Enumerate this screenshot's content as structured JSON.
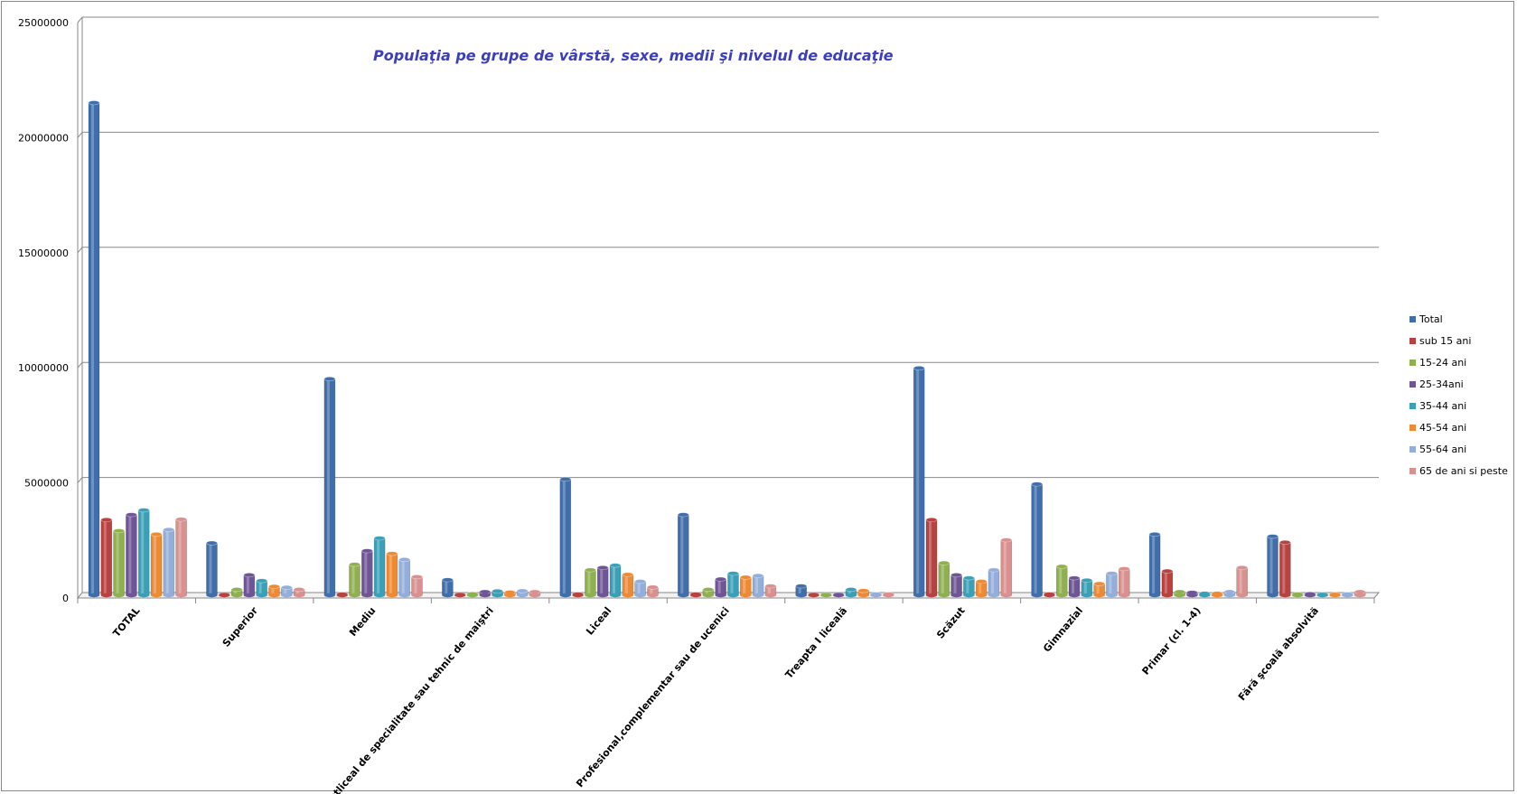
{
  "chart_data": {
    "type": "bar",
    "title": "Populaţia pe grupe de vârstă, sexe, medii şi nivelul de educaţie",
    "xlabel": "",
    "ylabel": "",
    "ylim": [
      0,
      25000000
    ],
    "yticks": [
      "0",
      "5000000",
      "10000000",
      "15000000",
      "20000000",
      "25000000"
    ],
    "grid": true,
    "legend_position": "right",
    "categories": [
      "TOTAL",
      "Superior",
      "Mediu",
      "Postliceal de specialitate sau tehnic de maiştri",
      "Liceal",
      "Profesional,complementar sau de ucenici",
      "Treapta I liceală",
      "Scăzut",
      "Gimnazial",
      "Primar (cl. 1-4)",
      "Fără şcoală absolvită"
    ],
    "series": [
      {
        "name": "Total",
        "color": "#3f6eaa",
        "values": [
          21400000,
          2270000,
          9400000,
          670000,
          5040000,
          3500000,
          400000,
          9870000,
          4830000,
          2650000,
          2560000
        ]
      },
      {
        "name": "sub 15 ani",
        "color": "#b8423f",
        "values": [
          3280000,
          30000,
          50000,
          30000,
          50000,
          50000,
          30000,
          3280000,
          50000,
          1050000,
          2300000
        ]
      },
      {
        "name": "15-24 ani",
        "color": "#8fb04f",
        "values": [
          2800000,
          250000,
          1340000,
          60000,
          1100000,
          250000,
          30000,
          1400000,
          1250000,
          150000,
          50000
        ]
      },
      {
        "name": "25-34ani",
        "color": "#6f5596",
        "values": [
          3500000,
          880000,
          1930000,
          150000,
          1200000,
          700000,
          30000,
          880000,
          750000,
          120000,
          60000
        ]
      },
      {
        "name": "35-44 ani",
        "color": "#3aa0b8",
        "values": [
          3700000,
          630000,
          2480000,
          180000,
          1300000,
          950000,
          250000,
          750000,
          650000,
          80000,
          40000
        ]
      },
      {
        "name": "45-54 ani",
        "color": "#ee8a34",
        "values": [
          2650000,
          380000,
          1810000,
          130000,
          900000,
          780000,
          200000,
          600000,
          500000,
          80000,
          40000
        ]
      },
      {
        "name": "55-64 ani",
        "color": "#93aedb",
        "values": [
          2850000,
          340000,
          1550000,
          190000,
          600000,
          850000,
          50000,
          1100000,
          950000,
          150000,
          50000
        ]
      },
      {
        "name": "65 de ani si peste",
        "color": "#d9908e",
        "values": [
          3300000,
          250000,
          800000,
          150000,
          350000,
          400000,
          50000,
          2400000,
          1150000,
          1200000,
          150000
        ]
      }
    ]
  }
}
